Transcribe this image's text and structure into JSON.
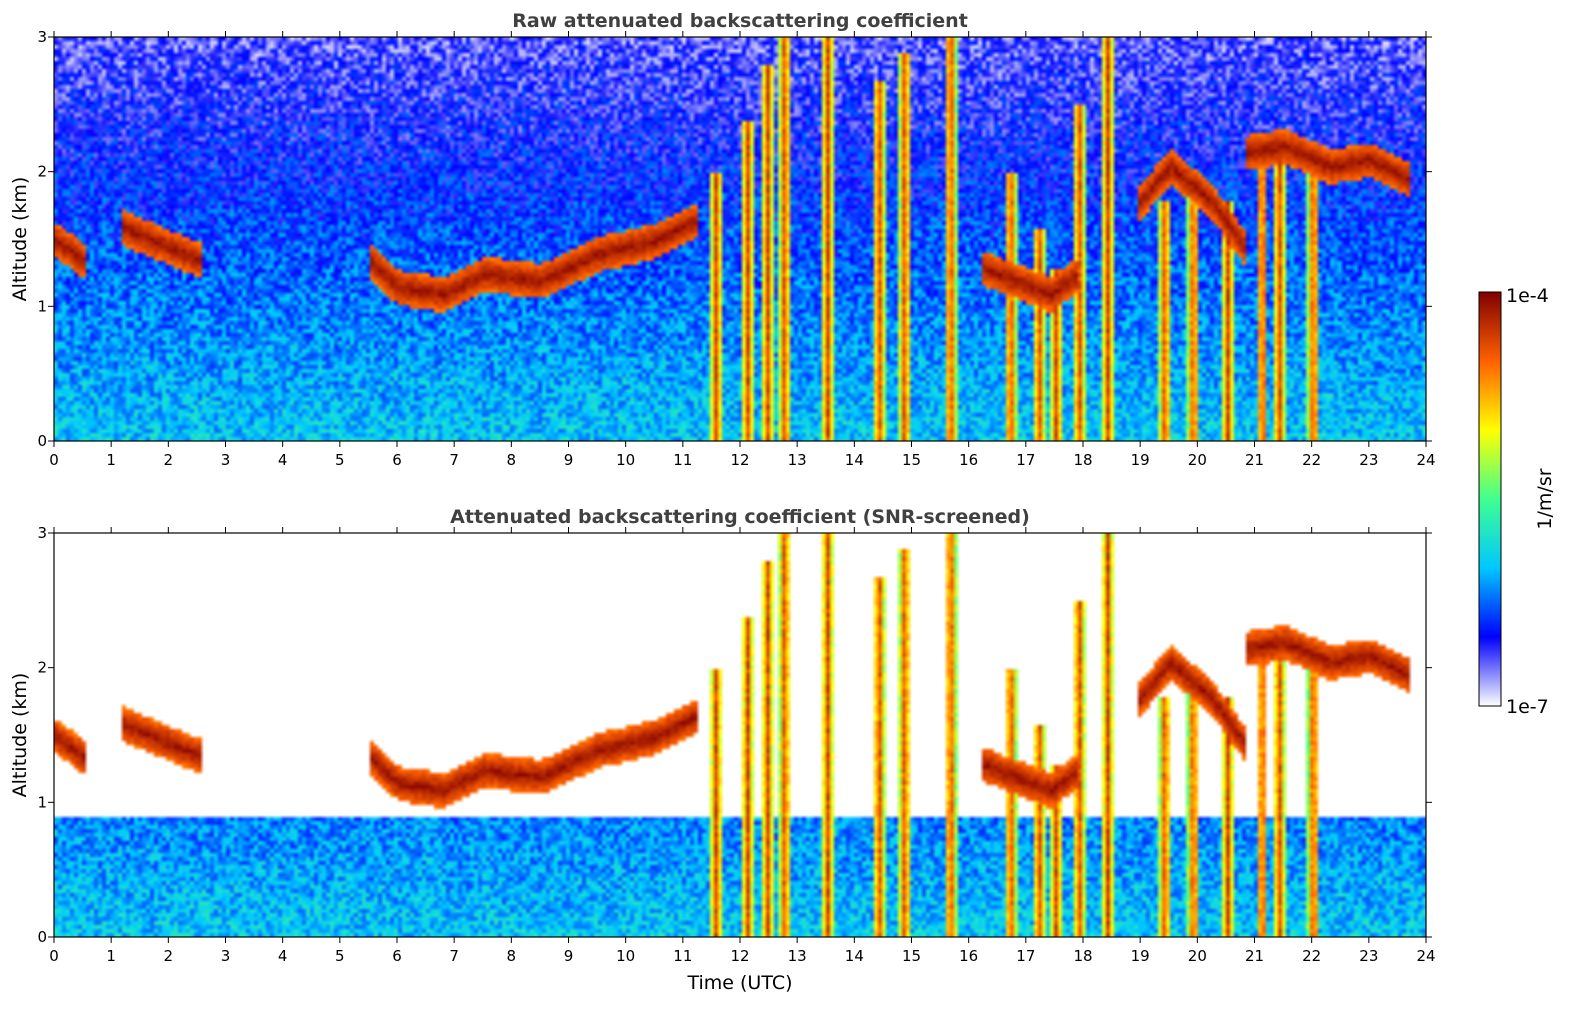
{
  "chart_data": [
    {
      "type": "heatmap",
      "title": "Raw attenuated backscattering coefficient",
      "xlabel": "",
      "ylabel": "Altitude (km)",
      "xlim": [
        0,
        24
      ],
      "ylim": [
        0,
        3
      ],
      "x_ticks": [
        "0",
        "1",
        "2",
        "3",
        "4",
        "5",
        "6",
        "7",
        "8",
        "9",
        "10",
        "11",
        "12",
        "13",
        "14",
        "15",
        "16",
        "17",
        "18",
        "19",
        "20",
        "21",
        "22",
        "23",
        "24"
      ],
      "y_ticks": [
        "0",
        "1",
        "2",
        "3"
      ],
      "mask_threshold": null,
      "cloud_layers": [
        {
          "x": [
            0.0,
            0.5
          ],
          "alt": [
            1.5,
            1.35
          ]
        },
        {
          "x": [
            1.15,
            2.55
          ],
          "alt": [
            1.6,
            1.35
          ]
        },
        {
          "x": [
            5.5,
            6.0,
            6.8,
            7.5,
            8.5,
            9.5,
            10.5,
            11.2
          ],
          "alt": [
            1.35,
            1.15,
            1.1,
            1.25,
            1.2,
            1.4,
            1.5,
            1.65
          ]
        },
        {
          "x": [
            16.2,
            16.8,
            17.4,
            17.9
          ],
          "alt": [
            1.3,
            1.2,
            1.1,
            1.25
          ]
        },
        {
          "x": [
            18.9,
            19.5,
            20.2,
            20.8
          ],
          "alt": [
            1.75,
            2.05,
            1.8,
            1.45
          ]
        },
        {
          "x": [
            20.8,
            21.5,
            22.3,
            23.0,
            23.7
          ],
          "alt": [
            2.15,
            2.2,
            2.05,
            2.1,
            1.95
          ]
        }
      ],
      "precip_shafts": [
        {
          "x": 11.55,
          "top": 2.0
        },
        {
          "x": 12.1,
          "top": 2.4
        },
        {
          "x": 12.45,
          "top": 2.8
        },
        {
          "x": 12.75,
          "top": 3.0
        },
        {
          "x": 13.5,
          "top": 3.0
        },
        {
          "x": 14.4,
          "top": 2.7
        },
        {
          "x": 14.85,
          "top": 2.9
        },
        {
          "x": 15.65,
          "top": 3.0
        },
        {
          "x": 16.7,
          "top": 2.0
        },
        {
          "x": 17.2,
          "top": 1.6
        },
        {
          "x": 17.5,
          "top": 1.3
        },
        {
          "x": 17.9,
          "top": 2.5
        },
        {
          "x": 18.4,
          "top": 3.0
        },
        {
          "x": 19.4,
          "top": 1.8
        },
        {
          "x": 19.9,
          "top": 2.0
        },
        {
          "x": 20.5,
          "top": 1.8
        },
        {
          "x": 21.1,
          "top": 2.1
        },
        {
          "x": 21.4,
          "top": 2.2
        },
        {
          "x": 22.0,
          "top": 2.0
        }
      ]
    },
    {
      "type": "heatmap",
      "title": "Attenuated backscattering coefficient (SNR-screened)",
      "xlabel": "Time (UTC)",
      "ylabel": "Altitude (km)",
      "xlim": [
        0,
        24
      ],
      "ylim": [
        0,
        3
      ],
      "x_ticks": [
        "0",
        "1",
        "2",
        "3",
        "4",
        "5",
        "6",
        "7",
        "8",
        "9",
        "10",
        "11",
        "12",
        "13",
        "14",
        "15",
        "16",
        "17",
        "18",
        "19",
        "20",
        "21",
        "22",
        "23",
        "24"
      ],
      "y_ticks": [
        "0",
        "1",
        "2",
        "3"
      ],
      "mask_threshold": 0.5,
      "cloud_layers": [
        {
          "x": [
            0.0,
            0.5
          ],
          "alt": [
            1.5,
            1.35
          ]
        },
        {
          "x": [
            1.15,
            2.55
          ],
          "alt": [
            1.6,
            1.35
          ]
        },
        {
          "x": [
            5.5,
            6.0,
            6.8,
            7.5,
            8.5,
            9.5,
            10.5,
            11.2
          ],
          "alt": [
            1.35,
            1.15,
            1.1,
            1.25,
            1.2,
            1.4,
            1.5,
            1.65
          ]
        },
        {
          "x": [
            16.2,
            16.8,
            17.4,
            17.9
          ],
          "alt": [
            1.3,
            1.2,
            1.1,
            1.25
          ]
        },
        {
          "x": [
            18.9,
            19.5,
            20.2,
            20.8
          ],
          "alt": [
            1.75,
            2.05,
            1.8,
            1.45
          ]
        },
        {
          "x": [
            20.8,
            21.5,
            22.3,
            23.0,
            23.7
          ],
          "alt": [
            2.15,
            2.2,
            2.05,
            2.1,
            1.95
          ]
        }
      ],
      "precip_shafts": [
        {
          "x": 11.55,
          "top": 2.0
        },
        {
          "x": 12.1,
          "top": 2.4
        },
        {
          "x": 12.45,
          "top": 2.8
        },
        {
          "x": 12.75,
          "top": 3.0
        },
        {
          "x": 13.5,
          "top": 3.0
        },
        {
          "x": 14.4,
          "top": 2.7
        },
        {
          "x": 14.85,
          "top": 2.9
        },
        {
          "x": 15.65,
          "top": 3.0
        },
        {
          "x": 16.7,
          "top": 2.0
        },
        {
          "x": 17.2,
          "top": 1.6
        },
        {
          "x": 17.5,
          "top": 1.3
        },
        {
          "x": 17.9,
          "top": 2.5
        },
        {
          "x": 18.4,
          "top": 3.0
        },
        {
          "x": 19.4,
          "top": 1.8
        },
        {
          "x": 19.9,
          "top": 2.0
        },
        {
          "x": 20.5,
          "top": 1.8
        },
        {
          "x": 21.1,
          "top": 2.1
        },
        {
          "x": 21.4,
          "top": 2.2
        },
        {
          "x": 22.0,
          "top": 2.0
        }
      ]
    }
  ],
  "colorbar": {
    "label": "1/m/sr",
    "max_label": "1e-4",
    "min_label": "1e-7",
    "scale": "log",
    "colors": [
      "#ffffff",
      "#0000ff",
      "#00c8ff",
      "#40ff90",
      "#ffff00",
      "#ff6000",
      "#800000"
    ]
  }
}
